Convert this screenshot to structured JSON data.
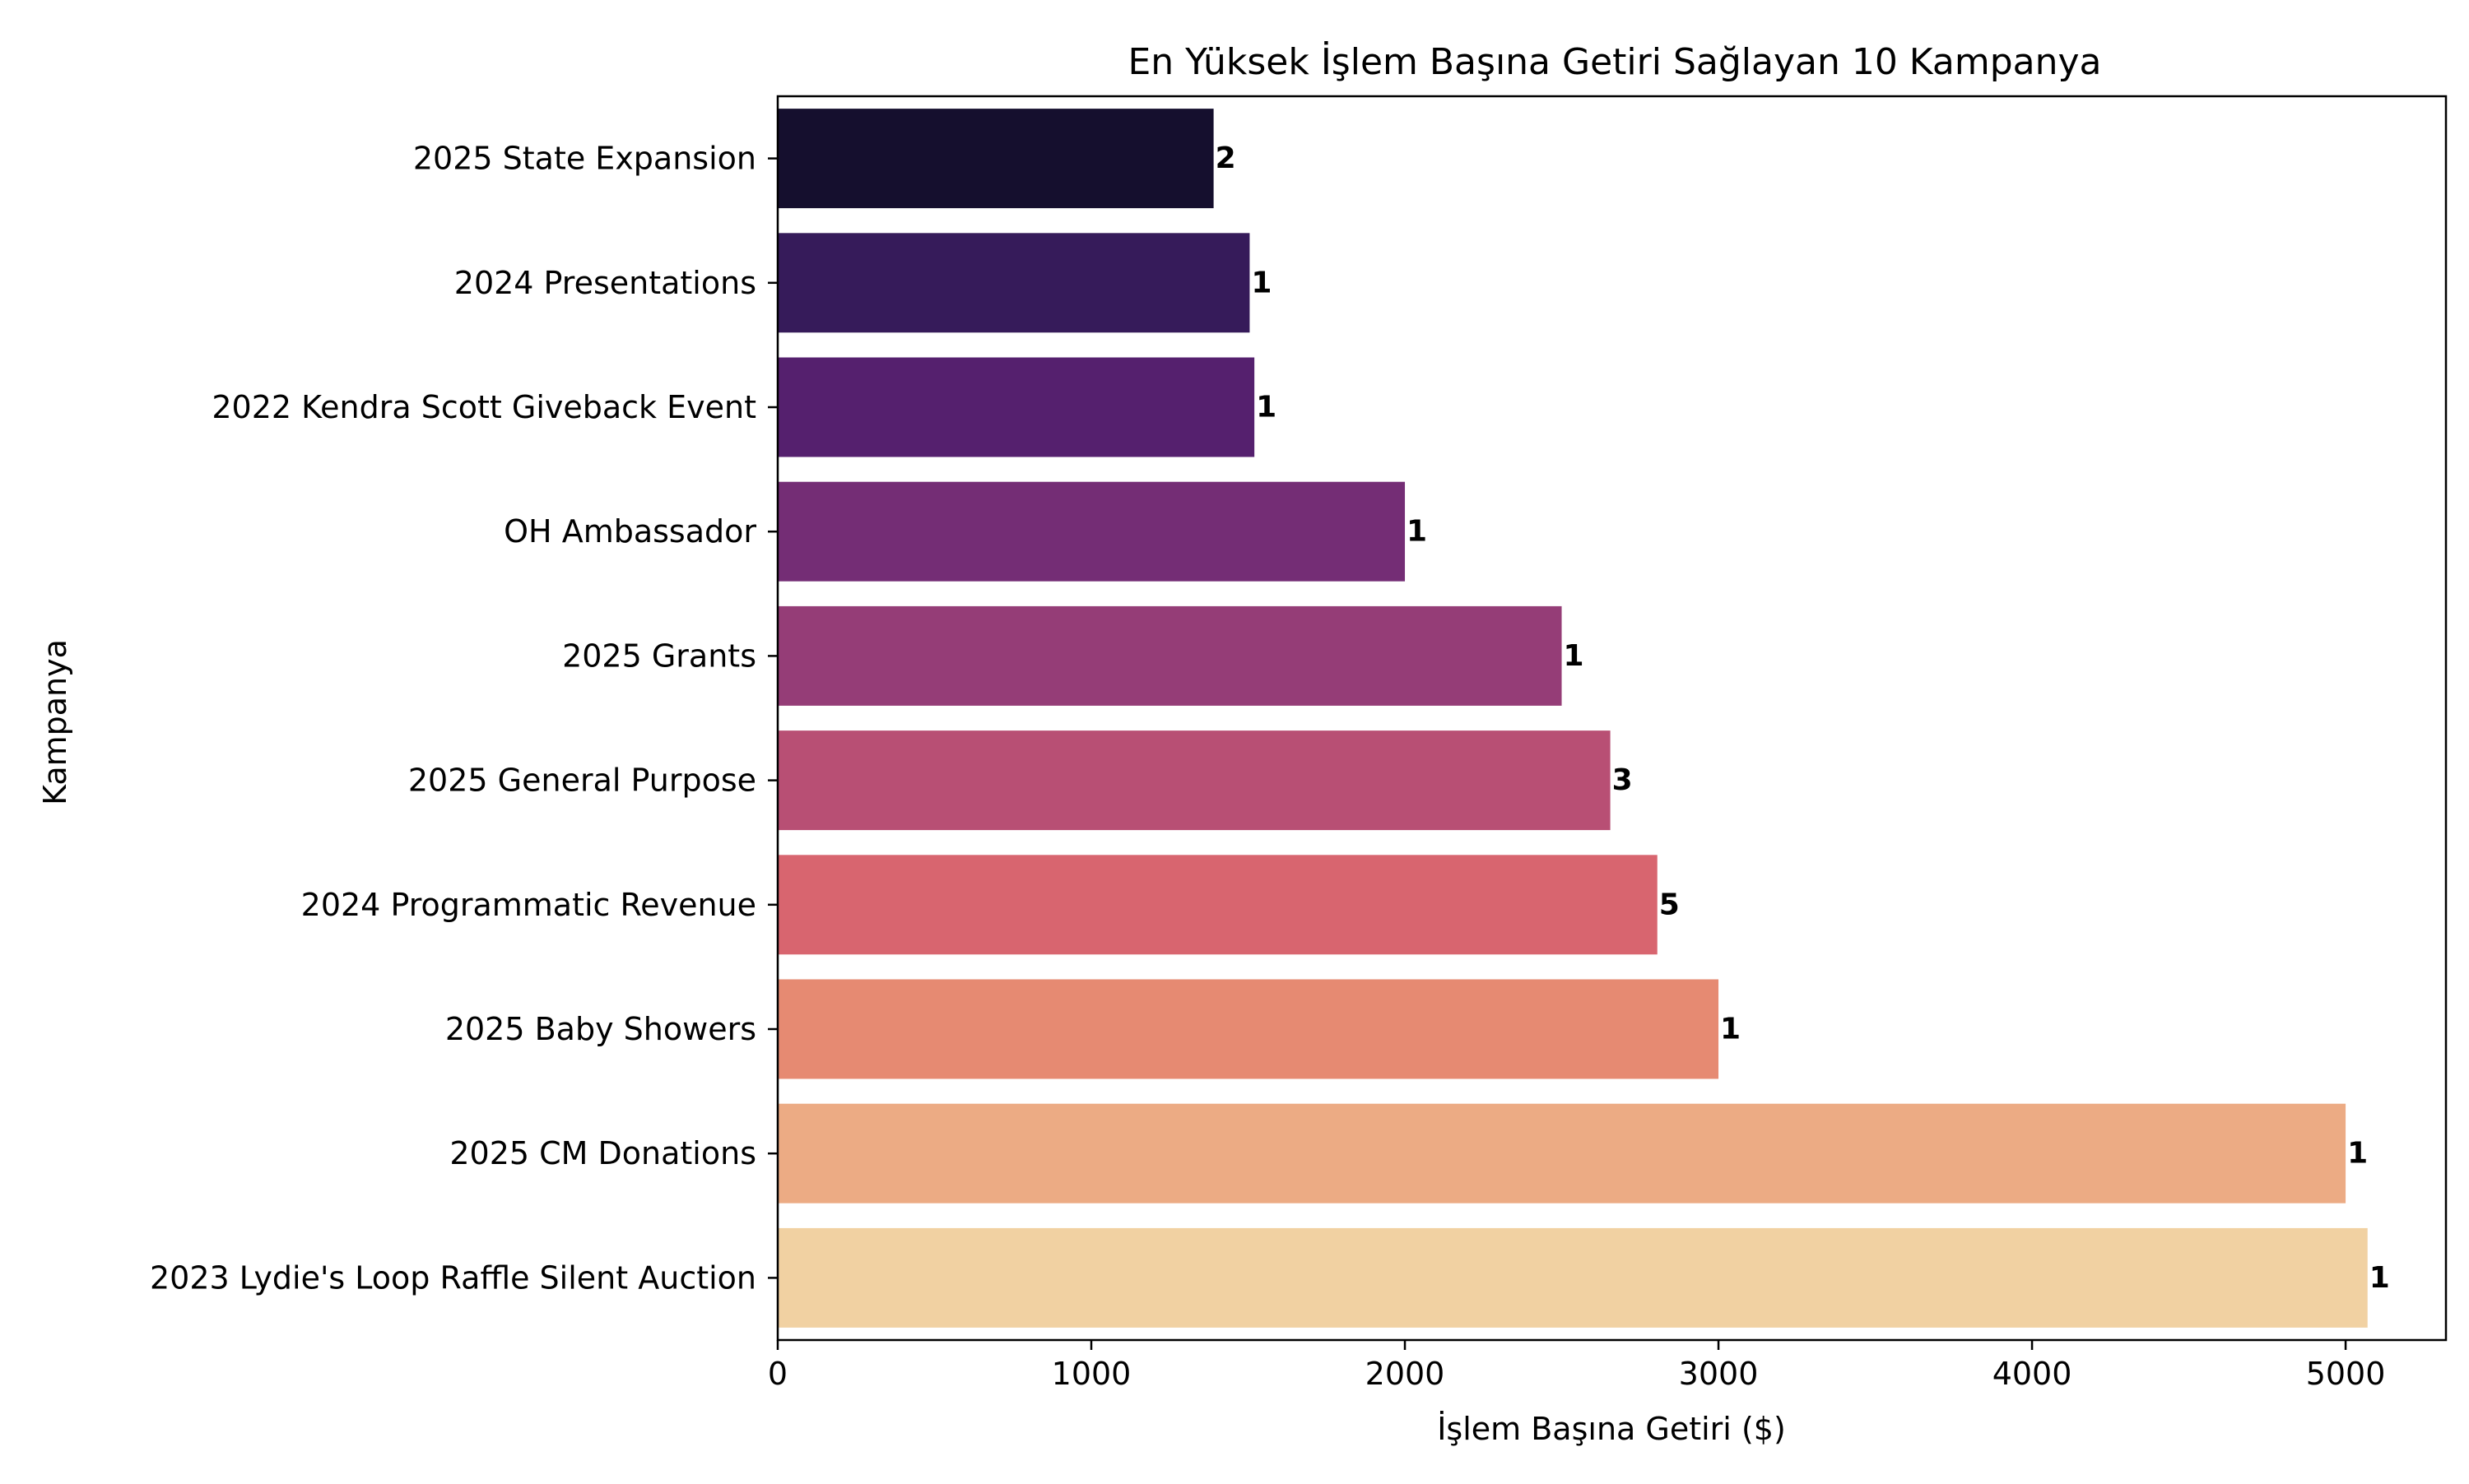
{
  "chart_data": {
    "type": "bar",
    "orientation": "horizontal",
    "title": "En Yüksek İşlem Başına Getiri Sağlayan 10 Kampanya",
    "xlabel": "İşlem Başına Getiri ($)",
    "ylabel": "Kampanya",
    "xlim": [
      0,
      5320
    ],
    "xticks": [
      0,
      1000,
      2000,
      3000,
      4000,
      5000
    ],
    "grid": false,
    "legend": "none",
    "categories": [
      "2025 State Expansion",
      "2024 Presentations",
      "2022 Kendra Scott Giveback Event",
      "OH Ambassador",
      "2025 Grants",
      "2025 General Purpose",
      "2024 Programmatic Revenue",
      "2025 Baby Showers",
      "2025 CM Donations",
      "2023 Lydie's Loop Raffle Silent Auction"
    ],
    "values": [
      1390,
      1505,
      1520,
      2000,
      2500,
      2655,
      2805,
      3000,
      5000,
      5070
    ],
    "bar_labels": [
      "2",
      "1",
      "1",
      "1",
      "1",
      "3",
      "5",
      "1",
      "1",
      "1"
    ],
    "colors": [
      "#150f2e",
      "#361b5a",
      "#55206e",
      "#742d75",
      "#953d77",
      "#b84f74",
      "#d8656f",
      "#e68a72",
      "#ecab84",
      "#f1d1a2"
    ]
  }
}
